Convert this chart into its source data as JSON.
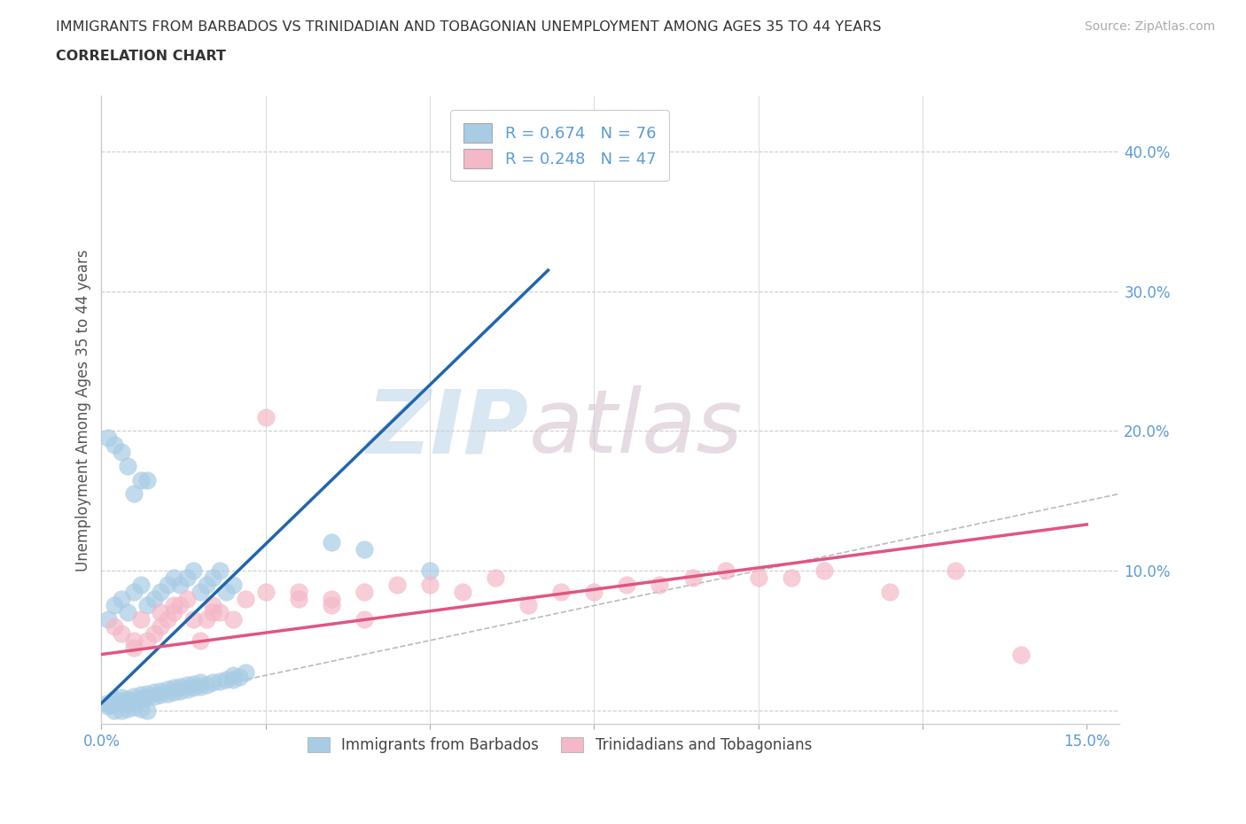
{
  "title_line1": "IMMIGRANTS FROM BARBADOS VS TRINIDADIAN AND TOBAGONIAN UNEMPLOYMENT AMONG AGES 35 TO 44 YEARS",
  "title_line2": "CORRELATION CHART",
  "source_text": "Source: ZipAtlas.com",
  "ylabel": "Unemployment Among Ages 35 to 44 years",
  "xlim": [
    0.0,
    0.155
  ],
  "ylim": [
    -0.01,
    0.44
  ],
  "xticks": [
    0.0,
    0.025,
    0.05,
    0.075,
    0.1,
    0.125,
    0.15
  ],
  "xtick_labels_show": {
    "0.0": "0.0%",
    "0.15": "15.0%"
  },
  "yticks": [
    0.0,
    0.1,
    0.2,
    0.3,
    0.4
  ],
  "ytick_labels": [
    "",
    "10.0%",
    "20.0%",
    "30.0%",
    "40.0%"
  ],
  "watermark_zip": "ZIP",
  "watermark_atlas": "atlas",
  "legend_r1": "R = 0.674",
  "legend_n1": "N = 76",
  "legend_r2": "R = 0.248",
  "legend_n2": "N = 47",
  "blue_color": "#a8cce4",
  "pink_color": "#f4b8c8",
  "blue_line_color": "#2166ac",
  "pink_line_color": "#e05580",
  "ref_line_color": "#bbbbbb",
  "title_color": "#333333",
  "axis_color": "#5b9bd5",
  "tick_color": "#888888",
  "background_color": "#ffffff",
  "blue_R": 0.674,
  "blue_N": 76,
  "pink_R": 0.248,
  "pink_N": 47,
  "blue_line_x": [
    0.0,
    0.068
  ],
  "blue_line_y": [
    0.005,
    0.315
  ],
  "pink_line_x": [
    0.0,
    0.15
  ],
  "pink_line_y": [
    0.04,
    0.133
  ],
  "ref_line_x": [
    0.0,
    0.42
  ],
  "ref_line_y": [
    0.0,
    0.42
  ],
  "blue_scatter_x": [
    0.0008,
    0.001,
    0.0015,
    0.002,
    0.002,
    0.003,
    0.003,
    0.003,
    0.004,
    0.004,
    0.005,
    0.005,
    0.006,
    0.006,
    0.007,
    0.007,
    0.008,
    0.008,
    0.009,
    0.009,
    0.01,
    0.01,
    0.011,
    0.011,
    0.012,
    0.012,
    0.013,
    0.013,
    0.014,
    0.014,
    0.015,
    0.015,
    0.016,
    0.017,
    0.018,
    0.019,
    0.02,
    0.02,
    0.021,
    0.022,
    0.001,
    0.002,
    0.003,
    0.004,
    0.005,
    0.006,
    0.007,
    0.008,
    0.009,
    0.01,
    0.011,
    0.012,
    0.013,
    0.014,
    0.015,
    0.016,
    0.017,
    0.018,
    0.019,
    0.02,
    0.001,
    0.002,
    0.003,
    0.004,
    0.005,
    0.006,
    0.007,
    0.035,
    0.04,
    0.05,
    0.002,
    0.003,
    0.004,
    0.005,
    0.006,
    0.007
  ],
  "blue_scatter_y": [
    0.005,
    0.003,
    0.004,
    0.006,
    0.008,
    0.005,
    0.007,
    0.009,
    0.006,
    0.008,
    0.007,
    0.01,
    0.008,
    0.011,
    0.009,
    0.012,
    0.01,
    0.013,
    0.011,
    0.014,
    0.012,
    0.015,
    0.013,
    0.016,
    0.014,
    0.017,
    0.015,
    0.018,
    0.016,
    0.019,
    0.017,
    0.02,
    0.018,
    0.02,
    0.021,
    0.022,
    0.022,
    0.025,
    0.024,
    0.027,
    0.065,
    0.075,
    0.08,
    0.07,
    0.085,
    0.09,
    0.075,
    0.08,
    0.085,
    0.09,
    0.095,
    0.09,
    0.095,
    0.1,
    0.085,
    0.09,
    0.095,
    0.1,
    0.085,
    0.09,
    0.195,
    0.19,
    0.185,
    0.175,
    0.155,
    0.165,
    0.165,
    0.12,
    0.115,
    0.1,
    0.0,
    0.0,
    0.001,
    0.002,
    0.001,
    0.0
  ],
  "pink_scatter_x": [
    0.002,
    0.003,
    0.005,
    0.006,
    0.008,
    0.009,
    0.01,
    0.011,
    0.012,
    0.013,
    0.015,
    0.016,
    0.017,
    0.018,
    0.02,
    0.022,
    0.025,
    0.025,
    0.03,
    0.03,
    0.035,
    0.035,
    0.04,
    0.04,
    0.045,
    0.05,
    0.055,
    0.06,
    0.065,
    0.07,
    0.075,
    0.08,
    0.085,
    0.09,
    0.095,
    0.1,
    0.105,
    0.11,
    0.12,
    0.13,
    0.005,
    0.007,
    0.009,
    0.011,
    0.014,
    0.017,
    0.14
  ],
  "pink_scatter_y": [
    0.06,
    0.055,
    0.05,
    0.065,
    0.055,
    0.06,
    0.065,
    0.07,
    0.075,
    0.08,
    0.05,
    0.065,
    0.075,
    0.07,
    0.065,
    0.08,
    0.085,
    0.21,
    0.08,
    0.085,
    0.08,
    0.075,
    0.065,
    0.085,
    0.09,
    0.09,
    0.085,
    0.095,
    0.075,
    0.085,
    0.085,
    0.09,
    0.09,
    0.095,
    0.1,
    0.095,
    0.095,
    0.1,
    0.085,
    0.1,
    0.045,
    0.05,
    0.07,
    0.075,
    0.065,
    0.07,
    0.04
  ]
}
